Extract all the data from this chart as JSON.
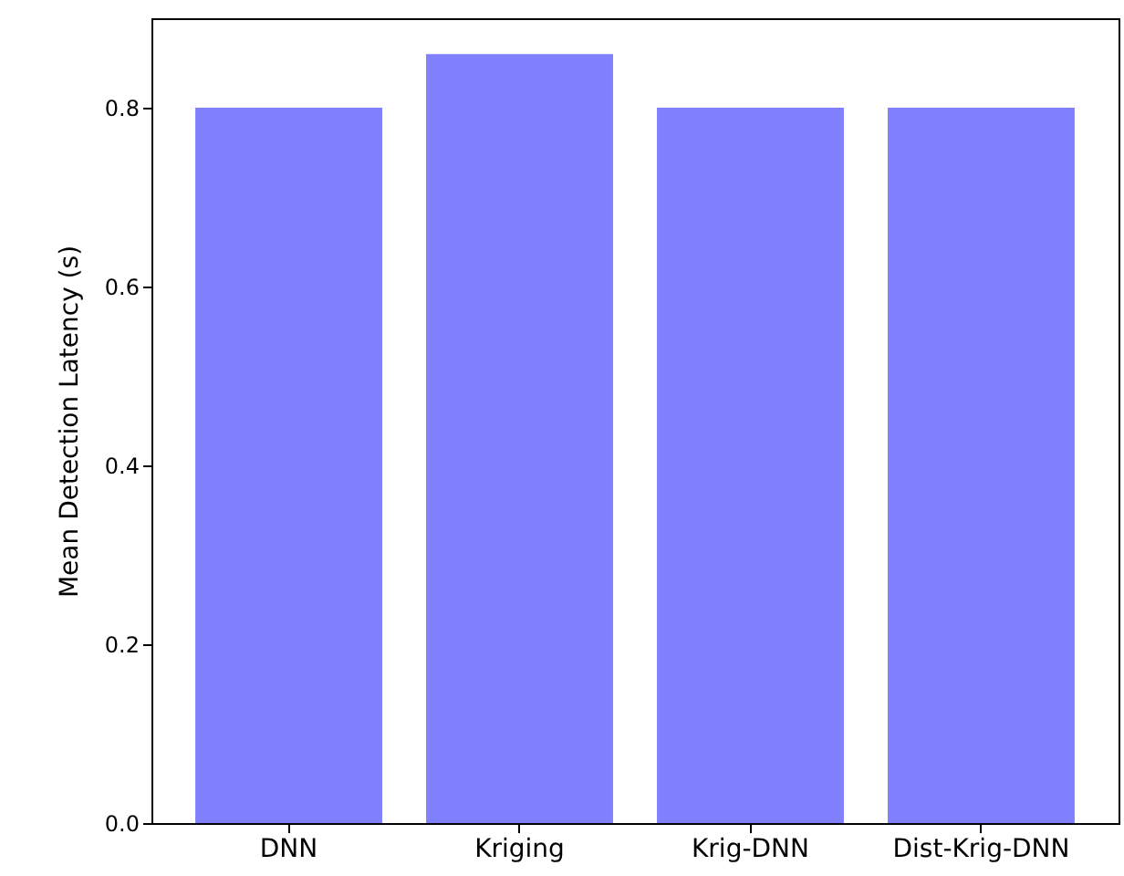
{
  "chart_data": {
    "type": "bar",
    "ylabel": "Mean Detection Latency (s)",
    "categories": [
      "DNN",
      "Kriging",
      "Krig-DNN",
      "Dist-Krig-DNN"
    ],
    "values": [
      0.8,
      0.86,
      0.8,
      0.8
    ],
    "color": "#8080ff",
    "ylim": [
      0,
      0.9
    ],
    "yticks": [
      {
        "value": 0,
        "label": "0.0"
      },
      0.2,
      0.4,
      0.6,
      0.8
    ],
    "grid": false
  }
}
